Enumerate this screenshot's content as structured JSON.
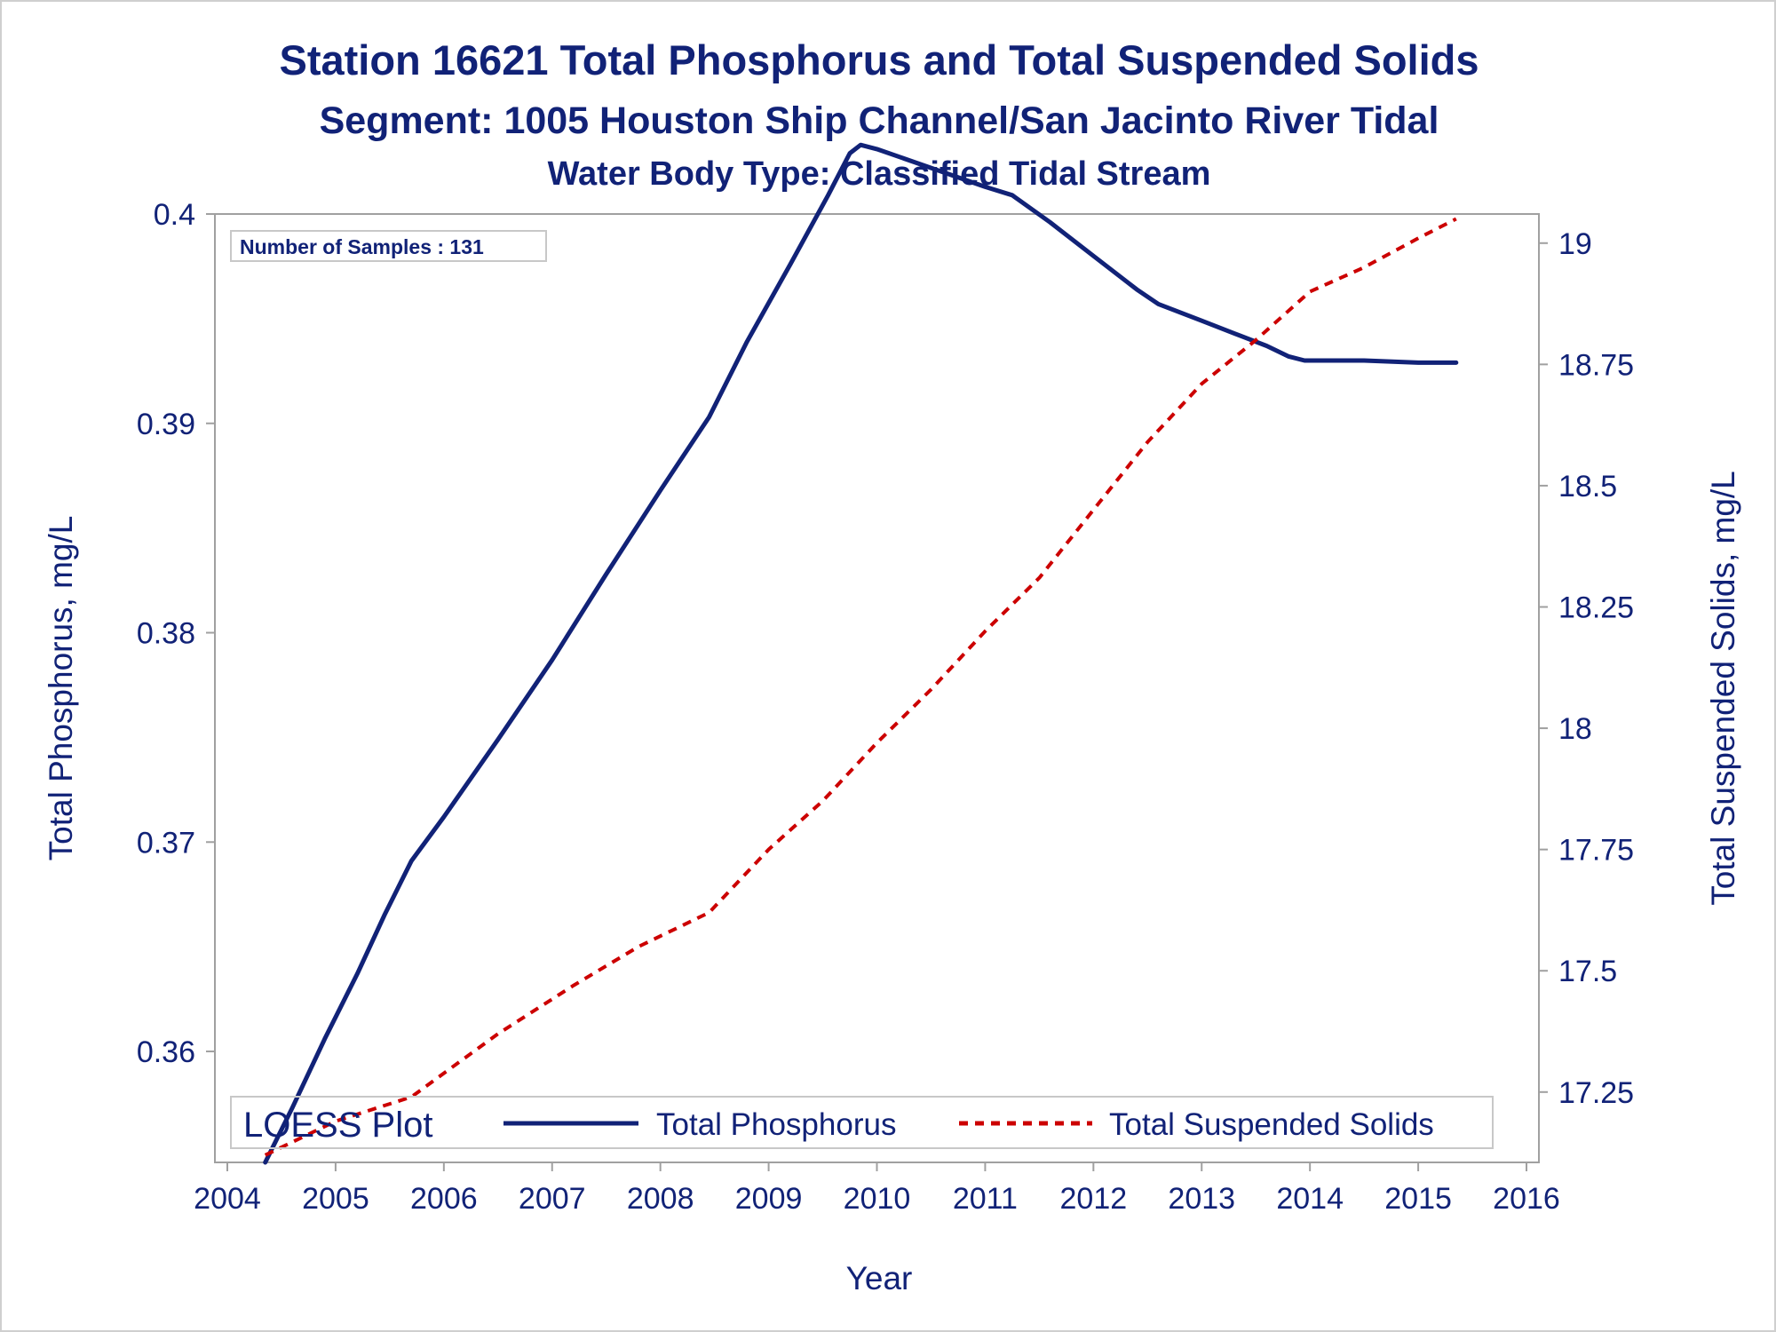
{
  "chart_data": {
    "type": "line",
    "title": "Station 16621  Total Phosphorus and Total Suspended Solids",
    "subtitle": "Segment: 1005  Houston Ship Channel/San Jacinto River Tidal",
    "subtitle2": "Water Body Type: Classified Tidal Stream",
    "xlabel": "Year",
    "ylabel": "Total Phosphorus, mg/L",
    "y2label": "Total Suspended Solids, mg/L",
    "xlim": [
      2004,
      2016
    ],
    "ylim": [
      0.3547,
      0.4
    ],
    "y2lim": [
      17.105,
      19.06
    ],
    "x_ticks": [
      "2004",
      "2005",
      "2006",
      "2007",
      "2008",
      "2009",
      "2010",
      "2011",
      "2012",
      "2013",
      "2014",
      "2015",
      "2016"
    ],
    "y_ticks": [
      "0.36",
      "0.37",
      "0.38",
      "0.39",
      "0.4"
    ],
    "y2_ticks": [
      "17.25",
      "17.5",
      "17.75",
      "18",
      "18.25",
      "18.5",
      "18.75",
      "19"
    ],
    "inset": "Number of Samples : 131",
    "legend": {
      "title": "LOESS Plot",
      "position": "bottom-inside",
      "entries": [
        "Total Phosphorus",
        "Total Suspended Solids"
      ]
    },
    "grid": false,
    "colors": {
      "phosphorus": "#112277",
      "tss": "#cc0000",
      "text": "#112277",
      "axis": "#a0a0a0"
    },
    "series": [
      {
        "name": "Total Phosphorus",
        "axis": "left",
        "style": "solid",
        "x": [
          2004.35,
          2004.6,
          2004.9,
          2005.2,
          2005.45,
          2005.7,
          2006.0,
          2006.5,
          2007.0,
          2007.5,
          2008.0,
          2008.45,
          2008.8,
          2009.2,
          2009.55,
          2009.75,
          2009.85,
          2010.0,
          2010.5,
          2011.0,
          2011.25,
          2011.6,
          2012.0,
          2012.4,
          2012.6,
          2012.8,
          2013.0,
          2013.3,
          2013.6,
          2013.8,
          2013.95,
          2014.1,
          2014.5,
          2015.0,
          2015.35
        ],
        "values": [
          0.3547,
          0.3573,
          0.3606,
          0.3637,
          0.3665,
          0.3691,
          0.3712,
          0.3749,
          0.3787,
          0.3828,
          0.3868,
          0.3903,
          0.3939,
          0.3976,
          0.4009,
          0.4029,
          0.4033,
          0.4031,
          0.4022,
          0.4013,
          0.4009,
          0.3996,
          0.398,
          0.3964,
          0.3957,
          0.3953,
          0.3949,
          0.3943,
          0.3937,
          0.3932,
          0.393,
          0.393,
          0.393,
          0.3929,
          0.3929
        ]
      },
      {
        "name": "Total Suspended Solids",
        "axis": "right",
        "style": "dashed",
        "x": [
          2004.35,
          2005.0,
          2005.7,
          2006.5,
          2007.2,
          2007.8,
          2008.45,
          2009.0,
          2009.5,
          2010.0,
          2010.5,
          2011.0,
          2011.5,
          2012.0,
          2012.5,
          2013.0,
          2013.5,
          2014.0,
          2014.5,
          2015.0,
          2015.35
        ],
        "values": [
          17.12,
          17.19,
          17.24,
          17.37,
          17.47,
          17.55,
          17.62,
          17.75,
          17.85,
          17.97,
          18.08,
          18.2,
          18.31,
          18.45,
          18.59,
          18.71,
          18.8,
          18.9,
          18.95,
          19.01,
          19.05
        ]
      }
    ]
  }
}
